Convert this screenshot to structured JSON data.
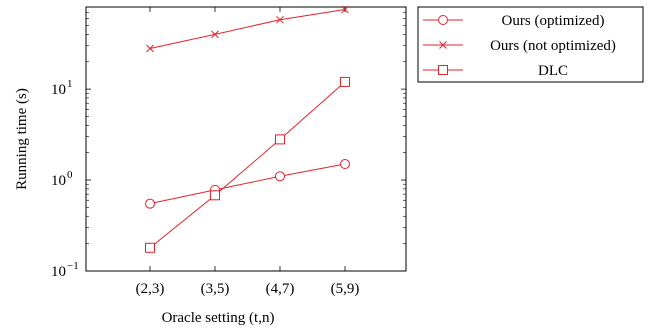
{
  "chart_data": {
    "type": "line",
    "title": "",
    "xlabel": "Oracle setting (t,n)",
    "ylabel": "Running time (s)",
    "categories": [
      "(2,3)",
      "(3,5)",
      "(4,7)",
      "(5,9)"
    ],
    "y_scale": "log",
    "ylim": [
      0.1,
      80
    ],
    "y_ticks": [
      {
        "value": 0.1,
        "base": "10",
        "exp": "−1"
      },
      {
        "value": 1,
        "base": "10",
        "exp": "0"
      },
      {
        "value": 10,
        "base": "10",
        "exp": "1"
      }
    ],
    "grid": false,
    "legend_position": "outside-right-top",
    "series": [
      {
        "name": "Ours (optimized)",
        "marker": "circle",
        "color": "#e0242b",
        "values": [
          0.55,
          0.78,
          1.1,
          1.5
        ]
      },
      {
        "name": "Ours (not optimized)",
        "marker": "x",
        "color": "#e0242b",
        "values": [
          28,
          40,
          58,
          75
        ]
      },
      {
        "name": "DLC",
        "marker": "square",
        "color": "#e0242b",
        "values": [
          0.18,
          0.68,
          2.8,
          12
        ]
      }
    ]
  }
}
